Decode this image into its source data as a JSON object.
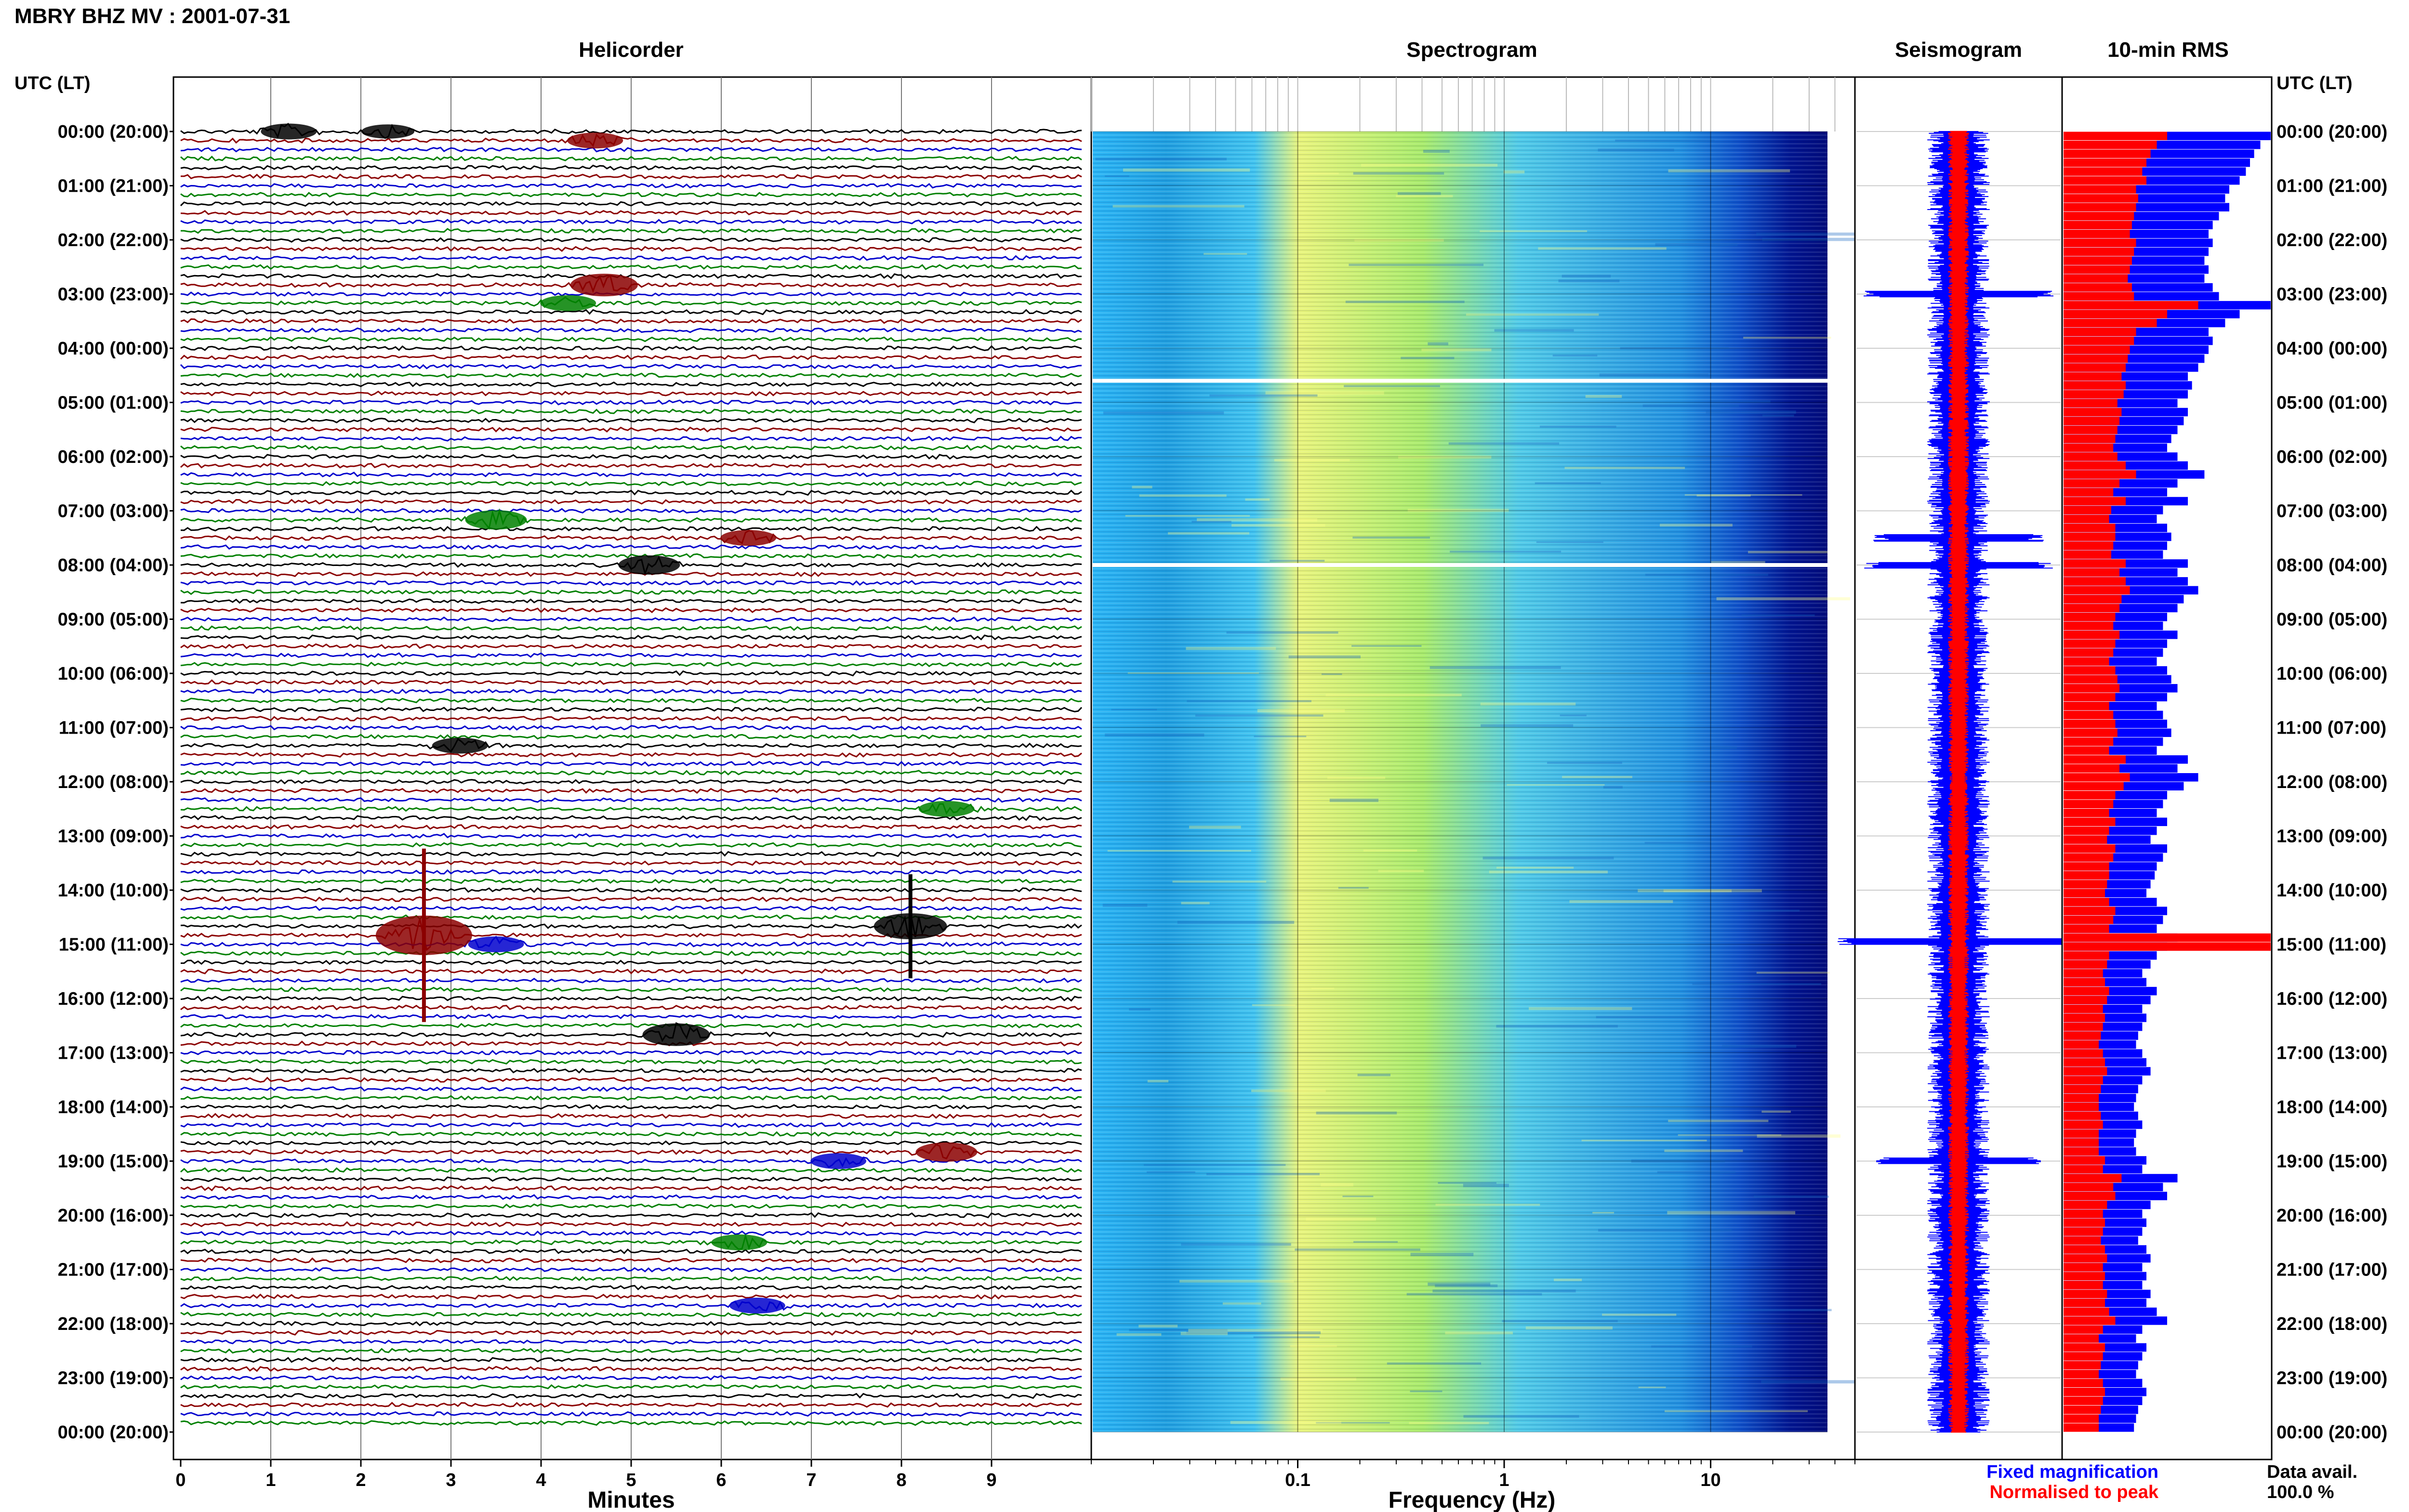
{
  "header": {
    "station_title": "MBRY BHZ MV : 2001-07-31",
    "panel_titles": [
      "Helicorder",
      "Spectrogram",
      "Seismogram",
      "10-min RMS"
    ],
    "utc_header_left": "UTC (LT)",
    "utc_header_right": "UTC (LT)"
  },
  "time_labels": [
    "00:00 (20:00)",
    "01:00 (21:00)",
    "02:00 (22:00)",
    "03:00 (23:00)",
    "04:00 (00:00)",
    "05:00 (01:00)",
    "06:00 (02:00)",
    "07:00 (03:00)",
    "08:00 (04:00)",
    "09:00 (05:00)",
    "10:00 (06:00)",
    "11:00 (07:00)",
    "12:00 (08:00)",
    "13:00 (09:00)",
    "14:00 (10:00)",
    "15:00 (11:00)",
    "16:00 (12:00)",
    "17:00 (13:00)",
    "18:00 (14:00)",
    "19:00 (15:00)",
    "20:00 (16:00)",
    "21:00 (17:00)",
    "22:00 (18:00)",
    "23:00 (19:00)",
    "00:00 (20:00)"
  ],
  "footer": {
    "helicorder_xlabel": "Minutes",
    "spectrogram_xlabel": "Frequency (Hz)",
    "legend_fixed": "Fixed magnification",
    "legend_normalised": "Normalised to peak",
    "data_avail_label": "Data avail.",
    "data_avail_value": "100.0 %"
  },
  "colors": {
    "trace_cycle": [
      "#000000",
      "#8b0000",
      "#0000cd",
      "#008000"
    ],
    "rms_fixed": "#0000ff",
    "rms_normalised": "#ff0000",
    "spectro_low": "#00008b",
    "spectro_mid": "#00bfff",
    "spectro_high": "#ffff66"
  },
  "chart_data": [
    {
      "type": "line",
      "panel": "Helicorder",
      "xlabel": "Minutes",
      "x_ticks": [
        "0",
        "1",
        "2",
        "3",
        "4",
        "5",
        "6",
        "7",
        "8",
        "9"
      ],
      "xlim": [
        0,
        10
      ],
      "ylim_hours": [
        0,
        24
      ],
      "traces_per_hour": 6,
      "events": [
        {
          "t_hours": 0.03,
          "minute": 1.2,
          "amp": 3
        },
        {
          "t_hours": 0.03,
          "minute": 2.3,
          "amp": 2.5
        },
        {
          "t_hours": 0.2,
          "minute": 4.6,
          "amp": 3
        },
        {
          "t_hours": 2.85,
          "minute": 4.7,
          "amp": 5
        },
        {
          "t_hours": 3.3,
          "minute": 4.3,
          "amp": 3
        },
        {
          "t_hours": 7.2,
          "minute": 3.5,
          "amp": 4
        },
        {
          "t_hours": 7.5,
          "minute": 6.3,
          "amp": 3
        },
        {
          "t_hours": 8.0,
          "minute": 5.2,
          "amp": 4
        },
        {
          "t_hours": 11.4,
          "minute": 3.1,
          "amp": 3
        },
        {
          "t_hours": 12.6,
          "minute": 8.5,
          "amp": 3
        },
        {
          "t_hours": 14.7,
          "minute": 8.1,
          "amp": 6
        },
        {
          "t_hours": 14.95,
          "minute": 2.7,
          "amp": 10
        },
        {
          "t_hours": 15.1,
          "minute": 3.5,
          "amp": 3
        },
        {
          "t_hours": 16.8,
          "minute": 5.5,
          "amp": 5
        },
        {
          "t_hours": 18.9,
          "minute": 8.5,
          "amp": 4
        },
        {
          "t_hours": 19.1,
          "minute": 7.3,
          "amp": 3
        },
        {
          "t_hours": 20.5,
          "minute": 6.2,
          "amp": 3
        },
        {
          "t_hours": 21.8,
          "minute": 6.4,
          "amp": 3
        }
      ]
    },
    {
      "type": "heatmap",
      "panel": "Spectrogram",
      "xlabel": "Frequency (Hz)",
      "x_scale": "log",
      "x_ticks": [
        {
          "value": 0.1,
          "label": "0.1"
        },
        {
          "value": 1,
          "label": "1"
        },
        {
          "value": 10,
          "label": "10"
        }
      ],
      "xlim": [
        0.01,
        50
      ],
      "peak_band_hz": [
        0.2,
        1.0
      ],
      "white_gap_hours": [
        4.6,
        8.0
      ]
    },
    {
      "type": "line",
      "panel": "Seismogram",
      "spikes": [
        {
          "t_hours": 3.0,
          "amp": 0.7
        },
        {
          "t_hours": 7.5,
          "amp": 0.6
        },
        {
          "t_hours": 8.0,
          "amp": 0.7
        },
        {
          "t_hours": 14.95,
          "amp": 1.0
        },
        {
          "t_hours": 19.0,
          "amp": 0.6
        }
      ]
    },
    {
      "type": "bar",
      "panel": "10-min RMS",
      "orientation": "horizontal",
      "series": [
        {
          "name": "Fixed magnification",
          "values": [
            1.0,
            0.95,
            0.92,
            0.9,
            0.88,
            0.85,
            0.8,
            0.78,
            0.8,
            0.75,
            0.72,
            0.7,
            0.72,
            0.7,
            0.68,
            0.7,
            0.68,
            0.72,
            0.75,
            1.0,
            0.85,
            0.78,
            0.7,
            0.72,
            0.7,
            0.68,
            0.65,
            0.6,
            0.62,
            0.6,
            0.55,
            0.6,
            0.58,
            0.55,
            0.52,
            0.5,
            0.55,
            0.6,
            0.68,
            0.55,
            0.5,
            0.6,
            0.48,
            0.45,
            0.5,
            0.52,
            0.5,
            0.48,
            0.6,
            0.55,
            0.6,
            0.65,
            0.58,
            0.55,
            0.5,
            0.48,
            0.55,
            0.5,
            0.48,
            0.45,
            0.5,
            0.52,
            0.55,
            0.5,
            0.45,
            0.48,
            0.5,
            0.52,
            0.48,
            0.45,
            0.6,
            0.55,
            0.65,
            0.58,
            0.5,
            0.48,
            0.45,
            0.5,
            0.45,
            0.42,
            0.5,
            0.48,
            0.45,
            0.44,
            0.42,
            0.4,
            0.45,
            0.5,
            0.48,
            0.45,
            0.55,
            0.5,
            0.45,
            0.42,
            0.38,
            0.4,
            0.45,
            0.42,
            0.38,
            0.4,
            0.38,
            0.36,
            0.35,
            0.38,
            0.4,
            0.42,
            0.38,
            0.36,
            0.35,
            0.34,
            0.36,
            0.38,
            0.35,
            0.34,
            0.35,
            0.4,
            0.38,
            0.55,
            0.48,
            0.5,
            0.42,
            0.38,
            0.4,
            0.38,
            0.36,
            0.4,
            0.42,
            0.38,
            0.4,
            0.38,
            0.42,
            0.4,
            0.45,
            0.5,
            0.38,
            0.35,
            0.4,
            0.38,
            0.36,
            0.35,
            0.38,
            0.4,
            0.38,
            0.36,
            0.35,
            0.34
          ]
        },
        {
          "name": "Normalised to peak",
          "values": [
            0.5,
            0.45,
            0.42,
            0.4,
            0.38,
            0.4,
            0.35,
            0.36,
            0.35,
            0.34,
            0.33,
            0.32,
            0.35,
            0.34,
            0.33,
            0.32,
            0.31,
            0.33,
            0.34,
            0.65,
            0.5,
            0.45,
            0.35,
            0.34,
            0.32,
            0.31,
            0.3,
            0.28,
            0.3,
            0.29,
            0.26,
            0.28,
            0.27,
            0.26,
            0.25,
            0.24,
            0.26,
            0.3,
            0.35,
            0.27,
            0.24,
            0.3,
            0.23,
            0.22,
            0.25,
            0.25,
            0.24,
            0.23,
            0.3,
            0.27,
            0.3,
            0.32,
            0.28,
            0.27,
            0.25,
            0.24,
            0.27,
            0.25,
            0.24,
            0.22,
            0.25,
            0.26,
            0.27,
            0.25,
            0.22,
            0.24,
            0.25,
            0.26,
            0.24,
            0.22,
            0.3,
            0.27,
            0.32,
            0.29,
            0.25,
            0.24,
            0.22,
            0.25,
            0.22,
            0.21,
            0.25,
            0.24,
            0.22,
            0.22,
            0.21,
            0.2,
            0.22,
            0.25,
            0.24,
            0.22,
            1.0,
            1.0,
            0.22,
            0.21,
            0.19,
            0.2,
            0.22,
            0.21,
            0.19,
            0.2,
            0.19,
            0.18,
            0.17,
            0.19,
            0.2,
            0.21,
            0.19,
            0.18,
            0.17,
            0.17,
            0.18,
            0.19,
            0.17,
            0.17,
            0.17,
            0.2,
            0.19,
            0.28,
            0.24,
            0.25,
            0.21,
            0.19,
            0.2,
            0.19,
            0.18,
            0.2,
            0.21,
            0.19,
            0.2,
            0.19,
            0.21,
            0.2,
            0.22,
            0.25,
            0.19,
            0.17,
            0.2,
            0.19,
            0.18,
            0.17,
            0.19,
            0.2,
            0.19,
            0.18,
            0.17,
            0.17
          ]
        }
      ]
    }
  ]
}
